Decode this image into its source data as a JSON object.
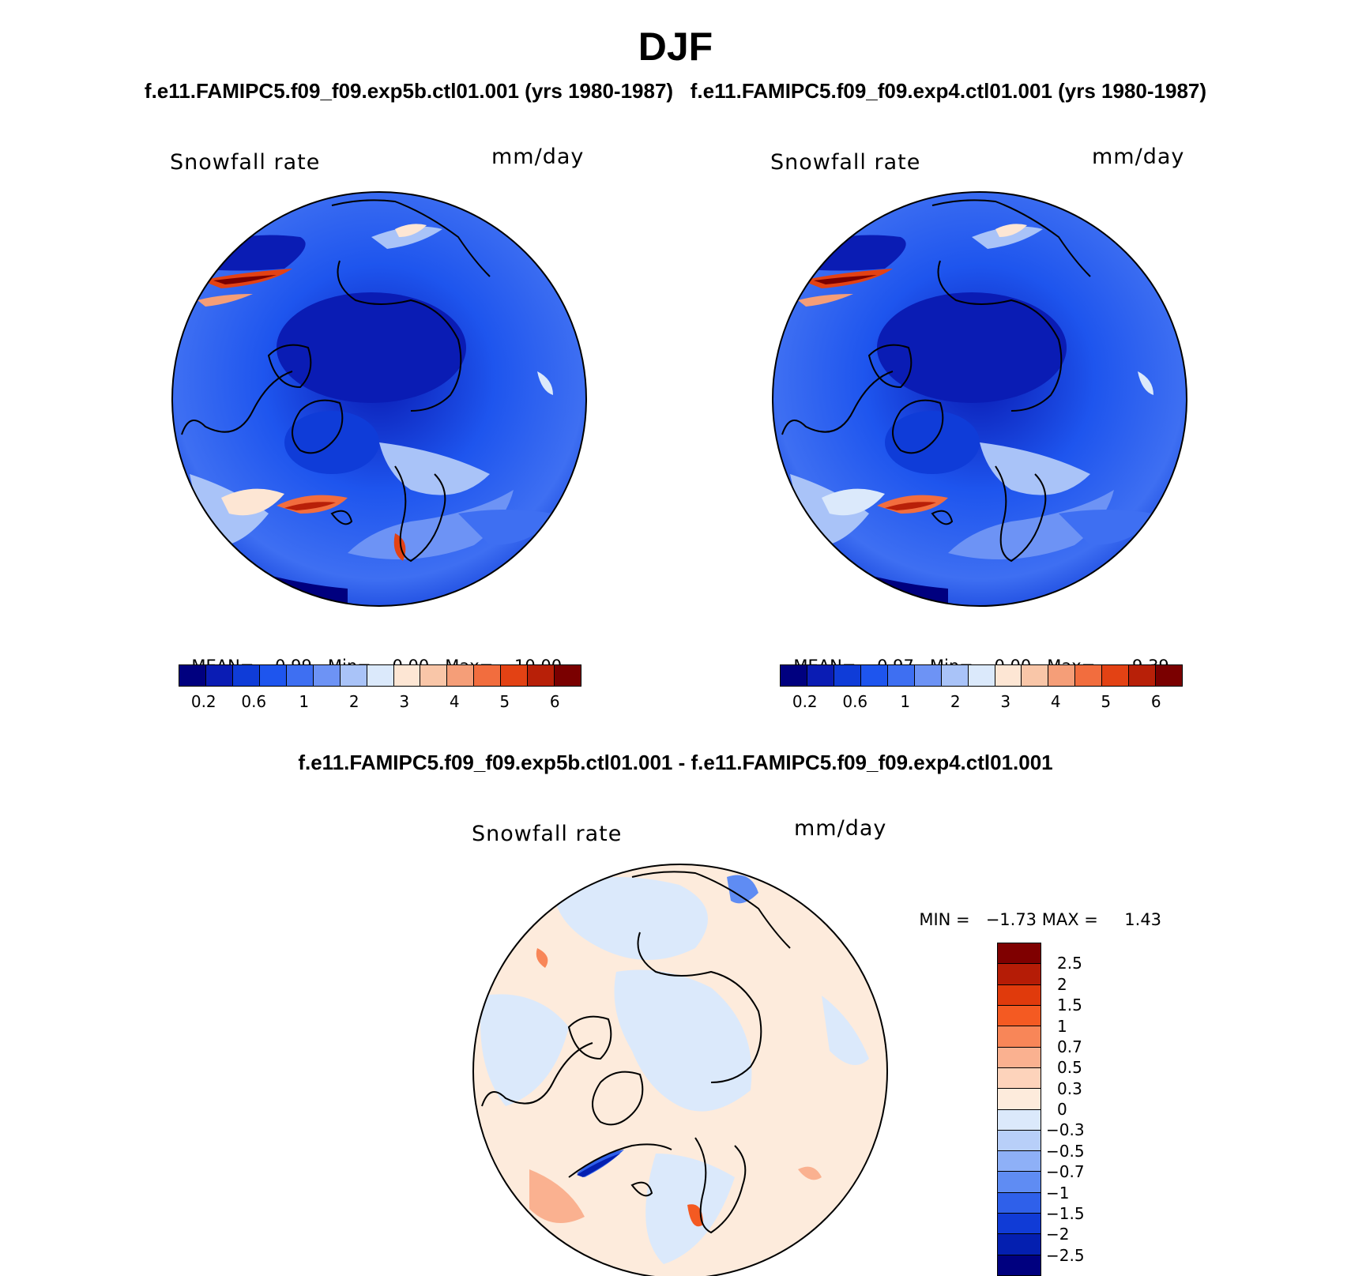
{
  "page": {
    "title": "DJF",
    "runs_line": "f.e11.FAMIPC5.f09_f09.exp5b.ctl01.001 (yrs 1980-1987)   f.e11.FAMIPC5.f09_f09.exp4.ctl01.001 (yrs 1980-1987)",
    "diff_line": "f.e11.FAMIPC5.f09_f09.exp5b.ctl01.001 - f.e11.FAMIPC5.f09_f09.exp4.ctl01.001"
  },
  "chart_data": [
    {
      "type": "heatmap",
      "projection": "polar stereographic (north)",
      "title": "Snowfall rate",
      "units": "mm/day",
      "stats": {
        "mean_label": "MEAN=",
        "mean": "0.99",
        "min_label": "Min=",
        "min": "0.00",
        "max_label": "Max=",
        "max": "10.00"
      },
      "colorbar": {
        "orientation": "horizontal",
        "colors": [
          "#00007f",
          "#0a1cb4",
          "#0f3cd8",
          "#1e55ee",
          "#3e6ff2",
          "#6d93f5",
          "#a9c3f8",
          "#dbe9fb",
          "#fde6d4",
          "#f9c6a8",
          "#f59e78",
          "#f26d3e",
          "#e34214",
          "#b82008",
          "#7a0000"
        ],
        "tick_labels": [
          "0.2",
          "0.6",
          "1",
          "2",
          "3",
          "4",
          "5",
          "6"
        ]
      }
    },
    {
      "type": "heatmap",
      "projection": "polar stereographic (north)",
      "title": "Snowfall rate",
      "units": "mm/day",
      "stats": {
        "mean_label": "MEAN=",
        "mean": "0.97",
        "min_label": "Min=",
        "min": "0.00",
        "max_label": "Max=",
        "max": "9.39"
      },
      "colorbar": {
        "orientation": "horizontal",
        "colors": [
          "#00007f",
          "#0a1cb4",
          "#0f3cd8",
          "#1e55ee",
          "#3e6ff2",
          "#6d93f5",
          "#a9c3f8",
          "#dbe9fb",
          "#fde6d4",
          "#f9c6a8",
          "#f59e78",
          "#f26d3e",
          "#e34214",
          "#b82008",
          "#7a0000"
        ],
        "tick_labels": [
          "0.2",
          "0.6",
          "1",
          "2",
          "3",
          "4",
          "5",
          "6"
        ]
      }
    },
    {
      "type": "heatmap",
      "projection": "polar stereographic (north)",
      "title": "Snowfall rate",
      "units": "mm/day",
      "stats": {
        "min_label": "MIN =",
        "min": "−1.73",
        "max_label": "MAX =",
        "max": "1.43"
      },
      "colorbar": {
        "orientation": "vertical",
        "colors": [
          "#7f0000",
          "#b51c06",
          "#e03a0c",
          "#f45a22",
          "#f88658",
          "#fab190",
          "#fdd3bb",
          "#fdebdc",
          "#dbe9fb",
          "#b8cff9",
          "#8eb0f7",
          "#5f8cf3",
          "#2f60ea",
          "#103bd6",
          "#041fb0",
          "#00007f"
        ],
        "tick_labels": [
          "2.5",
          "2",
          "1.5",
          "1",
          "0.7",
          "0.5",
          "0.3",
          "0",
          "−0.3",
          "−0.5",
          "−0.7",
          "−1",
          "−1.5",
          "−2",
          "−2.5"
        ]
      }
    }
  ]
}
